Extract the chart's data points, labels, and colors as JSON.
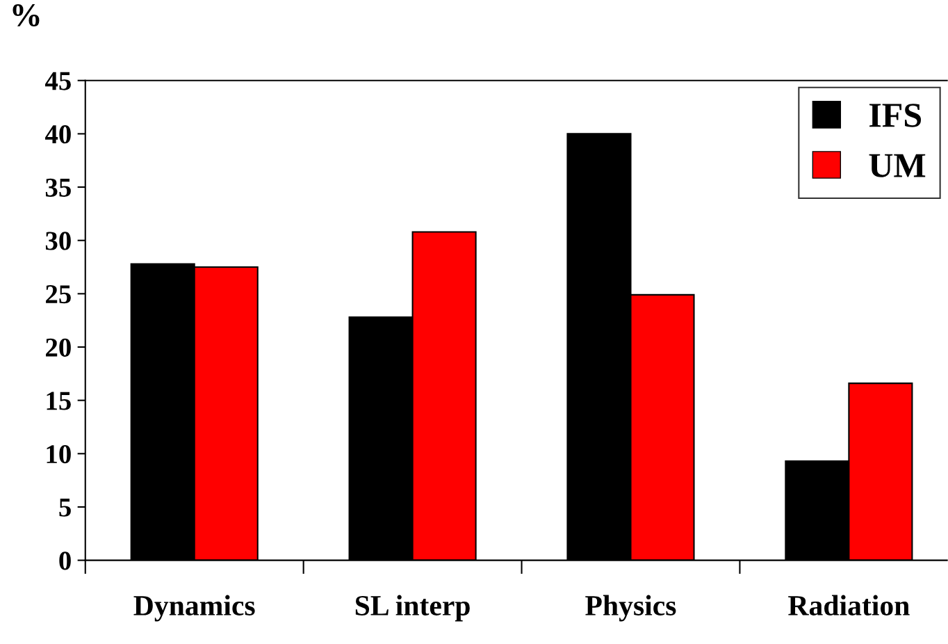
{
  "chart_data": {
    "type": "bar",
    "ylabel": "%",
    "categories": [
      "Dynamics",
      "SL interp",
      "Physics",
      "Radiation"
    ],
    "series": [
      {
        "name": "IFS",
        "color": "#000000",
        "values": [
          27.8,
          22.8,
          40,
          9.3
        ]
      },
      {
        "name": "UM",
        "color": "#ff0000",
        "values": [
          27.5,
          30.8,
          24.9,
          16.6
        ]
      }
    ],
    "ylim": [
      0,
      45
    ],
    "yticks": [
      0,
      5,
      10,
      15,
      20,
      25,
      30,
      35,
      40,
      45
    ],
    "grid": false,
    "legend": "top right"
  }
}
